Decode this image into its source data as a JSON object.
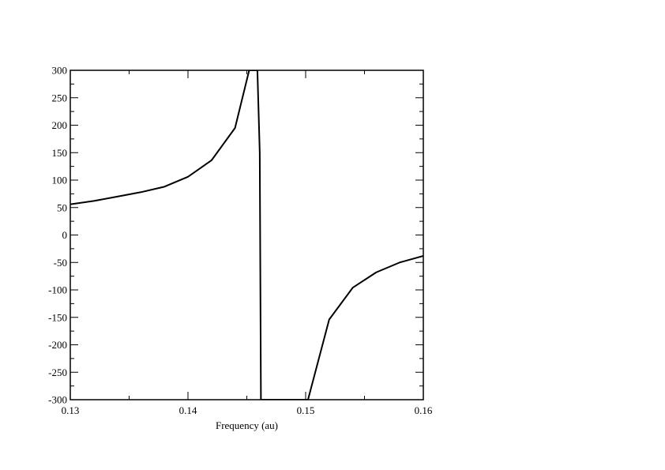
{
  "chart_data": {
    "type": "line",
    "title": "",
    "xlabel": "Frequency (au)",
    "ylabel": "",
    "xlim": [
      0.13,
      0.16
    ],
    "ylim": [
      -300,
      300
    ],
    "grid": false,
    "x_ticks": [
      0.13,
      0.14,
      0.15,
      0.16
    ],
    "x_tick_labels": [
      "0.13",
      "0.14",
      "0.15",
      "0.16"
    ],
    "y_ticks": [
      -300,
      -250,
      -200,
      -150,
      -100,
      -50,
      0,
      50,
      100,
      150,
      200,
      250,
      300
    ],
    "y_tick_labels": [
      "-300",
      "-250",
      "-200",
      "-150",
      "-100",
      "-50",
      "0",
      "50",
      "100",
      "150",
      "200",
      "250",
      "300"
    ],
    "series": [
      {
        "color": "#000000",
        "x": [
          0.13,
          0.132,
          0.134,
          0.136,
          0.138,
          0.14,
          0.142,
          0.144,
          0.1452,
          0.1459,
          0.1461,
          0.1462,
          0.1502,
          0.152,
          0.154,
          0.156,
          0.158,
          0.16
        ],
        "y": [
          56,
          62,
          70,
          78,
          88,
          106,
          136,
          195,
          300,
          300,
          150,
          -300,
          -300,
          -154,
          -96,
          -68,
          -50,
          -38
        ]
      }
    ]
  }
}
